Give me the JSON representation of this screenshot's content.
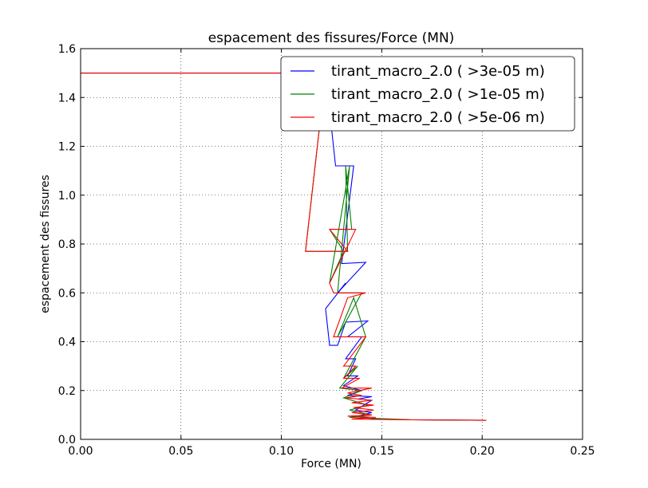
{
  "chart_data": {
    "type": "line",
    "title": "espacement des fissures/Force (MN)",
    "xlabel": "Force (MN)",
    "ylabel": "espacement des fissures",
    "xlim": [
      0.0,
      0.25
    ],
    "ylim": [
      0.0,
      1.6
    ],
    "xticks": [
      "0.00",
      "0.05",
      "0.10",
      "0.15",
      "0.20",
      "0.25"
    ],
    "yticks": [
      "0.0",
      "0.2",
      "0.4",
      "0.6",
      "0.8",
      "1.0",
      "1.2",
      "1.4",
      "1.6"
    ],
    "grid": true,
    "legend_position": "top-right",
    "series": [
      {
        "name": "tirant_macro_2.0 ( >3e-05 m)",
        "color": "#0000ff",
        "points": [
          [
            0.0,
            1.5
          ],
          [
            0.122,
            1.5
          ],
          [
            0.127,
            1.12
          ],
          [
            0.136,
            1.12
          ],
          [
            0.13,
            0.72
          ],
          [
            0.142,
            0.725
          ],
          [
            0.128,
            0.6
          ],
          [
            0.132,
            0.64
          ],
          [
            0.122,
            0.535
          ],
          [
            0.124,
            0.385
          ],
          [
            0.128,
            0.385
          ],
          [
            0.132,
            0.48
          ],
          [
            0.143,
            0.485
          ],
          [
            0.133,
            0.42
          ],
          [
            0.14,
            0.42
          ],
          [
            0.132,
            0.33
          ],
          [
            0.137,
            0.33
          ],
          [
            0.133,
            0.26
          ],
          [
            0.138,
            0.26
          ],
          [
            0.131,
            0.22
          ],
          [
            0.14,
            0.2
          ],
          [
            0.133,
            0.18
          ],
          [
            0.145,
            0.175
          ],
          [
            0.138,
            0.165
          ],
          [
            0.145,
            0.16
          ],
          [
            0.137,
            0.12
          ],
          [
            0.145,
            0.11
          ],
          [
            0.138,
            0.095
          ],
          [
            0.145,
            0.085
          ],
          [
            0.165,
            0.08
          ],
          [
            0.202,
            0.078
          ]
        ]
      },
      {
        "name": "tirant_macro_2.0 ( >1e-05 m)",
        "color": "#008000",
        "points": [
          [
            0.0,
            1.5
          ],
          [
            0.122,
            1.5
          ],
          [
            0.112,
            0.77
          ],
          [
            0.133,
            0.77
          ],
          [
            0.132,
            1.12
          ],
          [
            0.135,
            0.86
          ],
          [
            0.124,
            0.86
          ],
          [
            0.131,
            0.77
          ],
          [
            0.124,
            0.64
          ],
          [
            0.134,
            1.12
          ],
          [
            0.128,
            0.6
          ],
          [
            0.14,
            0.6
          ],
          [
            0.128,
            0.42
          ],
          [
            0.136,
            0.58
          ],
          [
            0.142,
            0.42
          ],
          [
            0.131,
            0.25
          ],
          [
            0.138,
            0.3
          ],
          [
            0.129,
            0.21
          ],
          [
            0.14,
            0.2
          ],
          [
            0.131,
            0.17
          ],
          [
            0.143,
            0.14
          ],
          [
            0.134,
            0.12
          ],
          [
            0.145,
            0.1
          ],
          [
            0.134,
            0.09
          ],
          [
            0.165,
            0.08
          ],
          [
            0.202,
            0.078
          ]
        ]
      },
      {
        "name": "tirant_macro_2.0 ( >5e-06 m)",
        "color": "#ff0000",
        "points": [
          [
            0.0,
            1.5
          ],
          [
            0.122,
            1.5
          ],
          [
            0.112,
            0.77
          ],
          [
            0.133,
            0.77
          ],
          [
            0.124,
            0.86
          ],
          [
            0.137,
            0.86
          ],
          [
            0.124,
            0.64
          ],
          [
            0.126,
            0.6
          ],
          [
            0.142,
            0.6
          ],
          [
            0.133,
            0.58
          ],
          [
            0.126,
            0.42
          ],
          [
            0.142,
            0.42
          ],
          [
            0.131,
            0.3
          ],
          [
            0.137,
            0.3
          ],
          [
            0.131,
            0.25
          ],
          [
            0.139,
            0.25
          ],
          [
            0.13,
            0.21
          ],
          [
            0.145,
            0.21
          ],
          [
            0.133,
            0.19
          ],
          [
            0.14,
            0.18
          ],
          [
            0.132,
            0.17
          ],
          [
            0.145,
            0.16
          ],
          [
            0.135,
            0.15
          ],
          [
            0.146,
            0.14
          ],
          [
            0.136,
            0.13
          ],
          [
            0.146,
            0.12
          ],
          [
            0.135,
            0.11
          ],
          [
            0.145,
            0.1
          ],
          [
            0.133,
            0.095
          ],
          [
            0.147,
            0.09
          ],
          [
            0.135,
            0.083
          ],
          [
            0.165,
            0.08
          ],
          [
            0.202,
            0.078
          ]
        ]
      }
    ]
  }
}
